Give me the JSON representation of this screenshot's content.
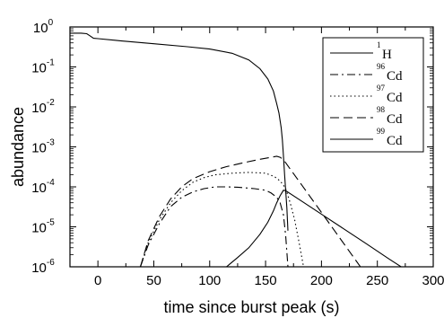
{
  "chart_data": {
    "type": "line",
    "xlabel": "time since burst peak (s)",
    "ylabel": "abundance",
    "xlim": [
      -25,
      300
    ],
    "ylim_log10": [
      -6,
      0
    ],
    "y_scale": "log",
    "x_ticks": [
      0,
      50,
      100,
      150,
      200,
      250,
      300
    ],
    "x_tick_labels": [
      "0",
      "50",
      "100",
      "150",
      "200",
      "250",
      "300"
    ],
    "y_ticks_log10": [
      0,
      -1,
      -2,
      -3,
      -4,
      -5,
      -6
    ],
    "y_tick_mantissa": "10",
    "y_tick_exponents": [
      "0",
      "-1",
      "-2",
      "-3",
      "-4",
      "-5",
      "-6"
    ],
    "grid": false,
    "legend_position": "top-right",
    "series": [
      {
        "name_sup": "1",
        "name_base": "H",
        "dash": "solid",
        "points": [
          [
            -25,
            0.7
          ],
          [
            -15,
            0.7
          ],
          [
            -10,
            0.68
          ],
          [
            -7,
            0.6
          ],
          [
            -4,
            0.52
          ],
          [
            0,
            0.51
          ],
          [
            20,
            0.45
          ],
          [
            50,
            0.38
          ],
          [
            80,
            0.32
          ],
          [
            100,
            0.28
          ],
          [
            120,
            0.22
          ],
          [
            135,
            0.15
          ],
          [
            145,
            0.09
          ],
          [
            152,
            0.05
          ],
          [
            157,
            0.025
          ],
          [
            160,
            0.012
          ],
          [
            162,
            0.007
          ],
          [
            164,
            0.003
          ],
          [
            165,
            0.0015
          ],
          [
            166,
            0.0006
          ],
          [
            167,
            0.0002
          ],
          [
            168,
            8e-05
          ],
          [
            169,
            3e-05
          ],
          [
            170,
            8e-06
          ]
        ]
      },
      {
        "name_sup": "96",
        "name_base": "Cd",
        "dash": "dashdot",
        "points": [
          [
            38,
            1e-06
          ],
          [
            45,
            3.5e-06
          ],
          [
            55,
            1.2e-05
          ],
          [
            65,
            3.2e-05
          ],
          [
            75,
            5.5e-05
          ],
          [
            85,
            7.5e-05
          ],
          [
            95,
            9e-05
          ],
          [
            105,
            0.0001
          ],
          [
            115,
            0.0001
          ],
          [
            125,
            9.8e-05
          ],
          [
            140,
            9e-05
          ],
          [
            150,
            8.2e-05
          ],
          [
            155,
            7e-05
          ],
          [
            160,
            5.5e-05
          ],
          [
            163,
            4e-05
          ],
          [
            166,
            2e-05
          ],
          [
            168,
            6e-06
          ],
          [
            170,
            1e-06
          ]
        ]
      },
      {
        "name_sup": "97",
        "name_base": "Cd",
        "dash": "dotted",
        "points": [
          [
            38,
            1e-06
          ],
          [
            45,
            4e-06
          ],
          [
            55,
            1.5e-05
          ],
          [
            65,
            4e-05
          ],
          [
            75,
            8e-05
          ],
          [
            85,
            0.00013
          ],
          [
            95,
            0.00017
          ],
          [
            105,
            0.0002
          ],
          [
            120,
            0.00022
          ],
          [
            135,
            0.00023
          ],
          [
            150,
            0.00022
          ],
          [
            158,
            0.00018
          ],
          [
            163,
            0.00014
          ],
          [
            166,
            0.00011
          ],
          [
            168,
            9e-05
          ],
          [
            172,
            4e-05
          ],
          [
            176,
            1.5e-05
          ],
          [
            180,
            4e-06
          ],
          [
            184,
            1e-06
          ]
        ]
      },
      {
        "name_sup": "98",
        "name_base": "Cd",
        "dash": "dashed",
        "points": [
          [
            38,
            1e-06
          ],
          [
            45,
            4.5e-06
          ],
          [
            55,
            1.8e-05
          ],
          [
            65,
            5e-05
          ],
          [
            75,
            0.0001
          ],
          [
            85,
            0.00016
          ],
          [
            100,
            0.00024
          ],
          [
            115,
            0.00032
          ],
          [
            130,
            0.0004
          ],
          [
            145,
            0.00049
          ],
          [
            155,
            0.00055
          ],
          [
            160,
            0.00058
          ],
          [
            163,
            0.00055
          ],
          [
            166,
            0.00048
          ],
          [
            168,
            0.0004
          ],
          [
            180,
            0.000137
          ],
          [
            200,
            2.29e-05
          ],
          [
            220,
            3.8e-06
          ],
          [
            240,
            6.3e-07
          ],
          [
            246,
            3.7e-07
          ]
        ]
      },
      {
        "name_sup": "99",
        "name_base": "Cd",
        "dash": "solid",
        "points": [
          [
            115,
            1e-06
          ],
          [
            125,
            1.7e-06
          ],
          [
            135,
            3e-06
          ],
          [
            145,
            6.5e-06
          ],
          [
            152,
            1.3e-05
          ],
          [
            157,
            2.5e-05
          ],
          [
            160,
            4e-05
          ],
          [
            163,
            6e-05
          ],
          [
            166,
            8.2e-05
          ],
          [
            168,
            8e-05
          ],
          [
            180,
            4.83e-05
          ],
          [
            200,
            2.07e-05
          ],
          [
            220,
            8.9e-06
          ],
          [
            240,
            3.8e-06
          ],
          [
            260,
            1.6e-06
          ],
          [
            273,
            9.3e-07
          ]
        ]
      }
    ]
  }
}
